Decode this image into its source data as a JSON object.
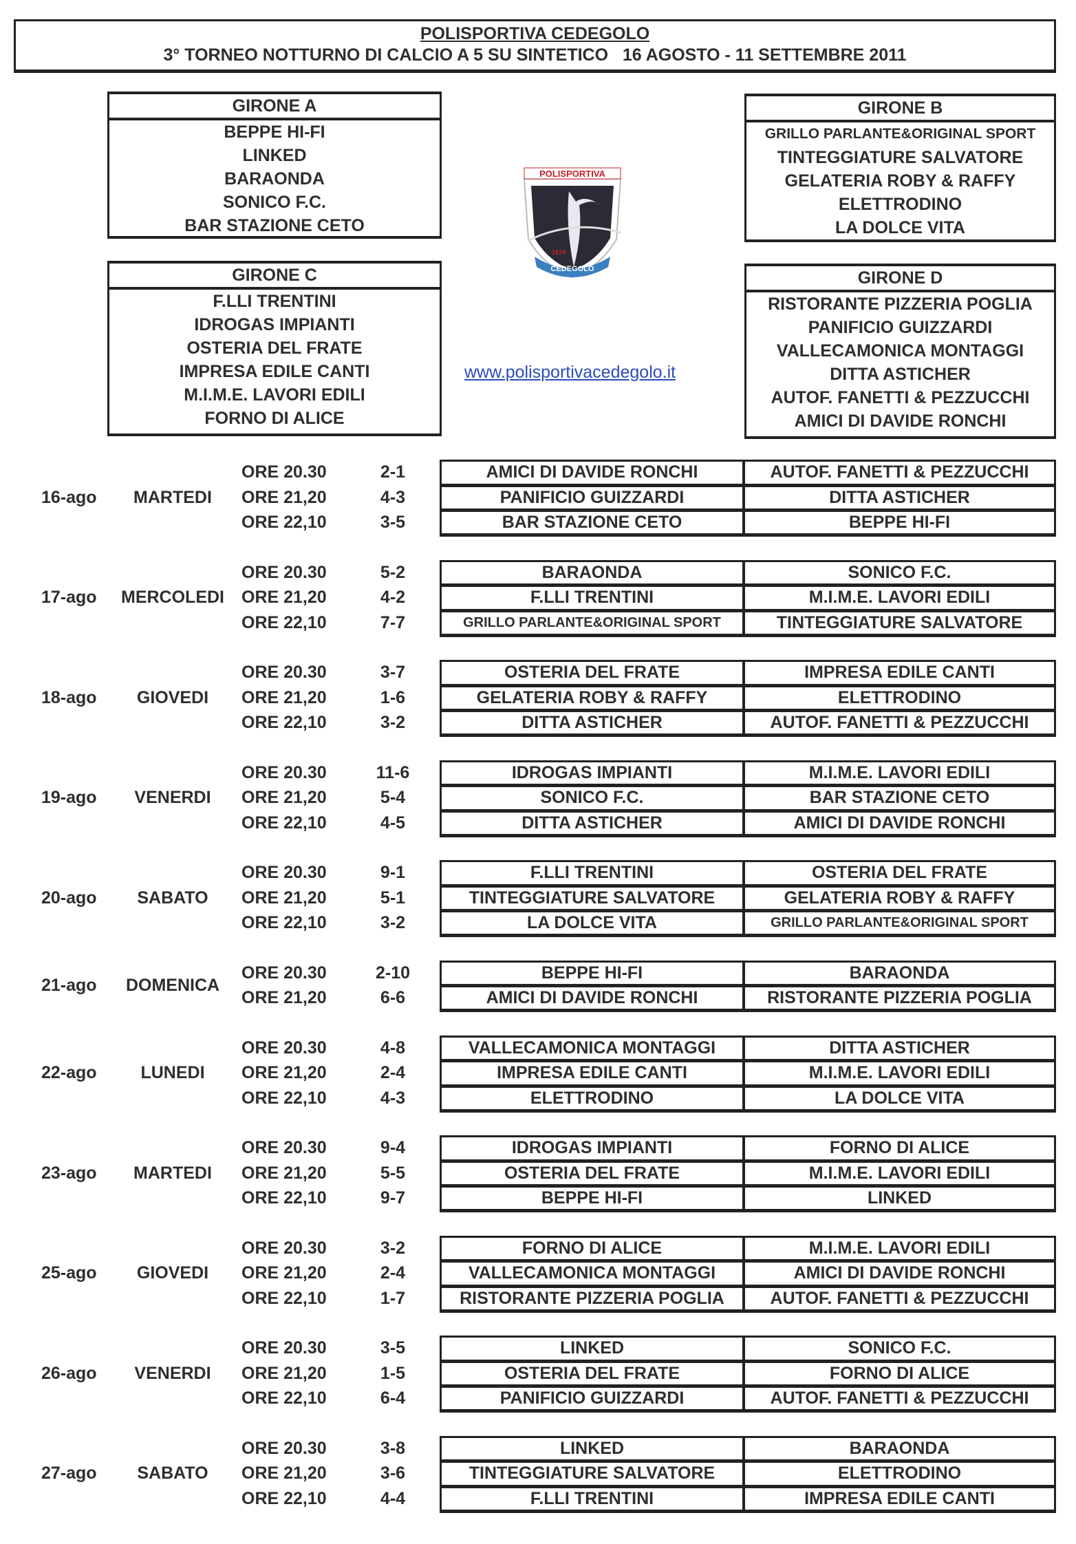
{
  "header": {
    "title": "POLISPORTIVA CEDEGOLO",
    "subtitle": "3° TORNEO NOTTURNO DI CALCIO A 5 SU SINTETICO   16 AGOSTO - 11 SETTEMBRE 2011"
  },
  "groups": [
    {
      "title": "GIRONE A",
      "teams": [
        "BEPPE HI-FI",
        "LINKED",
        "BARAONDA",
        "SONICO F.C.",
        "BAR STAZIONE CETO"
      ]
    },
    {
      "title": "GIRONE B",
      "teams": [
        "GRILLO PARLANTE&ORIGINAL SPORT",
        "TINTEGGIATURE SALVATORE",
        "GELATERIA ROBY & RAFFY",
        "ELETTRODINO",
        "LA DOLCE VITA"
      ]
    },
    {
      "title": "GIRONE C",
      "teams": [
        "F.LLI TRENTINI",
        "IDROGAS IMPIANTI",
        "OSTERIA DEL FRATE",
        "IMPRESA EDILE CANTI",
        "M.I.M.E. LAVORI EDILI",
        "FORNO DI ALICE"
      ]
    },
    {
      "title": "GIRONE D",
      "teams": [
        "RISTORANTE PIZZERIA POGLIA",
        "PANIFICIO GUIZZARDI",
        "VALLECAMONICA MONTAGGI",
        "DITTA ASTICHER",
        "AUTOF. FANETTI & PEZZUCCHI",
        "AMICI DI DAVIDE RONCHI"
      ]
    }
  ],
  "logo": {
    "top_text": "POLISPORTIVA",
    "bottom_text": "CEDEGOLO",
    "year": "1974",
    "colors": {
      "shield": "#2b2b35",
      "ribbon": "#3a7fc0",
      "text": "#c8202a"
    }
  },
  "website": "www.polisportivacedegolo.it",
  "link_color": "#2a4db8",
  "schedule": [
    {
      "date": "16-ago",
      "day": "MARTEDI",
      "matches": [
        {
          "time": "ORE 20.30",
          "score": "2-1",
          "home": "AMICI DI DAVIDE RONCHI",
          "away": "AUTOF. FANETTI & PEZZUCCHI"
        },
        {
          "time": "ORE 21,20",
          "score": "4-3",
          "home": "PANIFICIO GUIZZARDI",
          "away": "DITTA ASTICHER"
        },
        {
          "time": "ORE 22,10",
          "score": "3-5",
          "home": "BAR STAZIONE CETO",
          "away": "BEPPE HI-FI"
        }
      ]
    },
    {
      "date": "17-ago",
      "day": "MERCOLEDI",
      "matches": [
        {
          "time": "ORE 20.30",
          "score": "5-2",
          "home": "BARAONDA",
          "away": "SONICO F.C."
        },
        {
          "time": "ORE 21,20",
          "score": "4-2",
          "home": "F.LLI TRENTINI",
          "away": "M.I.M.E. LAVORI EDILI"
        },
        {
          "time": "ORE 22,10",
          "score": "7-7",
          "home": "GRILLO PARLANTE&ORIGINAL SPORT",
          "away": "TINTEGGIATURE SALVATORE"
        }
      ]
    },
    {
      "date": "18-ago",
      "day": "GIOVEDI",
      "matches": [
        {
          "time": "ORE 20.30",
          "score": "3-7",
          "home": "OSTERIA DEL FRATE",
          "away": "IMPRESA EDILE CANTI"
        },
        {
          "time": "ORE 21,20",
          "score": "1-6",
          "home": "GELATERIA ROBY & RAFFY",
          "away": "ELETTRODINO"
        },
        {
          "time": "ORE 22,10",
          "score": "3-2",
          "home": "DITTA ASTICHER",
          "away": "AUTOF. FANETTI & PEZZUCCHI"
        }
      ]
    },
    {
      "date": "19-ago",
      "day": "VENERDI",
      "matches": [
        {
          "time": "ORE 20.30",
          "score": "11-6",
          "home": "IDROGAS IMPIANTI",
          "away": "M.I.M.E. LAVORI EDILI"
        },
        {
          "time": "ORE 21,20",
          "score": "5-4",
          "home": "SONICO F.C.",
          "away": "BAR STAZIONE CETO"
        },
        {
          "time": "ORE 22,10",
          "score": "4-5",
          "home": "DITTA ASTICHER",
          "away": "AMICI DI DAVIDE RONCHI"
        }
      ]
    },
    {
      "date": "20-ago",
      "day": "SABATO",
      "matches": [
        {
          "time": "ORE 20.30",
          "score": "9-1",
          "home": "F.LLI TRENTINI",
          "away": "OSTERIA DEL FRATE"
        },
        {
          "time": "ORE 21,20",
          "score": "5-1",
          "home": "TINTEGGIATURE SALVATORE",
          "away": "GELATERIA ROBY & RAFFY"
        },
        {
          "time": "ORE 22,10",
          "score": "3-2",
          "home": "LA DOLCE VITA",
          "away": "GRILLO PARLANTE&ORIGINAL SPORT"
        }
      ]
    },
    {
      "date": "21-ago",
      "day": "DOMENICA",
      "matches": [
        {
          "time": "ORE 20.30",
          "score": "2-10",
          "home": "BEPPE HI-FI",
          "away": "BARAONDA"
        },
        {
          "time": "ORE 21,20",
          "score": "6-6",
          "home": "AMICI DI DAVIDE RONCHI",
          "away": "RISTORANTE PIZZERIA POGLIA"
        }
      ]
    },
    {
      "date": "22-ago",
      "day": "LUNEDI",
      "matches": [
        {
          "time": "ORE 20.30",
          "score": "4-8",
          "home": "VALLECAMONICA MONTAGGI",
          "away": "DITTA ASTICHER"
        },
        {
          "time": "ORE 21,20",
          "score": "2-4",
          "home": "IMPRESA EDILE CANTI",
          "away": "M.I.M.E. LAVORI EDILI"
        },
        {
          "time": "ORE 22,10",
          "score": "4-3",
          "home": "ELETTRODINO",
          "away": "LA DOLCE VITA"
        }
      ]
    },
    {
      "date": "23-ago",
      "day": "MARTEDI",
      "matches": [
        {
          "time": "ORE 20.30",
          "score": "9-4",
          "home": "IDROGAS IMPIANTI",
          "away": "FORNO DI ALICE"
        },
        {
          "time": "ORE 21,20",
          "score": "5-5",
          "home": "OSTERIA DEL FRATE",
          "away": "M.I.M.E. LAVORI EDILI"
        },
        {
          "time": "ORE 22,10",
          "score": "9-7",
          "home": "BEPPE HI-FI",
          "away": "LINKED"
        }
      ]
    },
    {
      "date": "25-ago",
      "day": "GIOVEDI",
      "matches": [
        {
          "time": "ORE 20.30",
          "score": "3-2",
          "home": "FORNO DI ALICE",
          "away": "M.I.M.E. LAVORI EDILI"
        },
        {
          "time": "ORE 21,20",
          "score": "2-4",
          "home": "VALLECAMONICA MONTAGGI",
          "away": "AMICI DI DAVIDE RONCHI"
        },
        {
          "time": "ORE 22,10",
          "score": "1-7",
          "home": "RISTORANTE PIZZERIA POGLIA",
          "away": "AUTOF. FANETTI & PEZZUCCHI"
        }
      ]
    },
    {
      "date": "26-ago",
      "day": "VENERDI",
      "matches": [
        {
          "time": "ORE 20.30",
          "score": "3-5",
          "home": "LINKED",
          "away": "SONICO F.C."
        },
        {
          "time": "ORE 21,20",
          "score": "1-5",
          "home": "OSTERIA DEL FRATE",
          "away": "FORNO DI ALICE"
        },
        {
          "time": "ORE 22,10",
          "score": "6-4",
          "home": "PANIFICIO GUIZZARDI",
          "away": "AUTOF. FANETTI & PEZZUCCHI"
        }
      ]
    },
    {
      "date": "27-ago",
      "day": "SABATO",
      "matches": [
        {
          "time": "ORE 20.30",
          "score": "3-8",
          "home": "LINKED",
          "away": "BARAONDA"
        },
        {
          "time": "ORE 21,20",
          "score": "3-6",
          "home": "TINTEGGIATURE SALVATORE",
          "away": "ELETTRODINO"
        },
        {
          "time": "ORE 22,10",
          "score": "4-4",
          "home": "F.LLI TRENTINI",
          "away": "IMPRESA EDILE CANTI"
        }
      ]
    }
  ]
}
